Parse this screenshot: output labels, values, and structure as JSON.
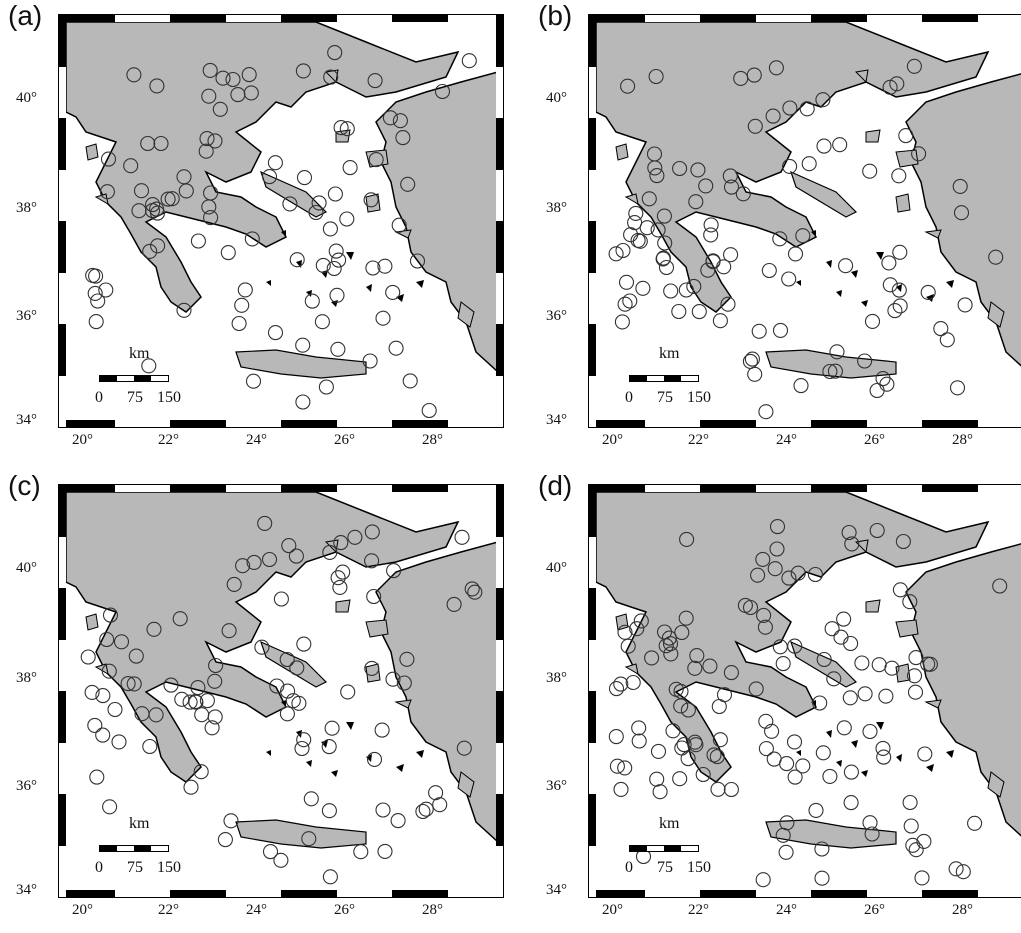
{
  "panels": [
    {
      "label": "(a)"
    },
    {
      "label": "(b)"
    },
    {
      "label": "(c)"
    },
    {
      "label": "(d)"
    }
  ],
  "lat_labels": [
    "40°",
    "38°",
    "36°",
    "34°"
  ],
  "lon_labels": [
    "20°",
    "22°",
    "24°",
    "26°",
    "28°"
  ],
  "scale": {
    "unit": "km",
    "ticks": [
      "0",
      "75",
      "150"
    ]
  },
  "colors": {
    "land": "#b8b8b8",
    "sea": "#ffffff",
    "outline": "#000000",
    "marker": "#333333"
  }
}
